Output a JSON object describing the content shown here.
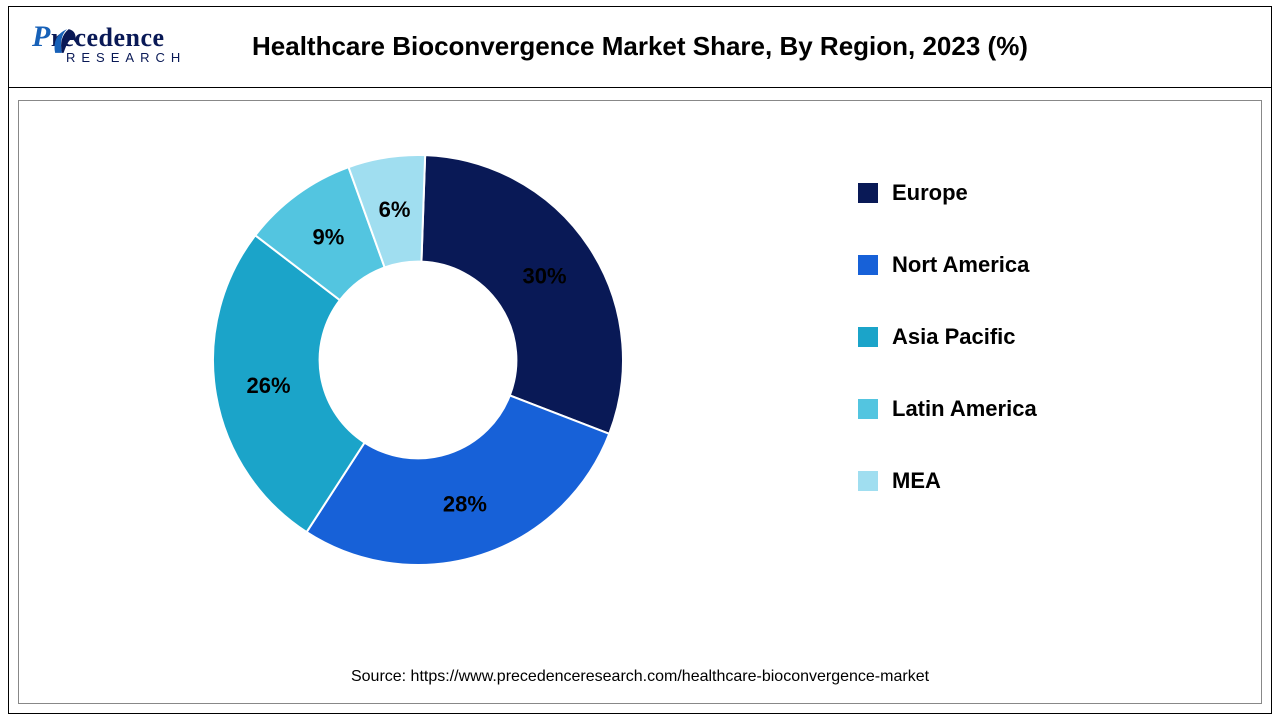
{
  "logo": {
    "brand_first": "P",
    "brand_rest": "recedence",
    "brand_sub": "RESEARCH",
    "brand_color_main": "#091956",
    "brand_color_accent": "#1761b8"
  },
  "chart": {
    "type": "donut",
    "title": "Healthcare Bioconvergence Market Share, By Region, 2023 (%)",
    "title_fontsize": 26,
    "title_color": "#000000",
    "background_color": "#ffffff",
    "inner_radius_pct": 48,
    "outer_radius_pct": 100,
    "start_angle_deg": 2,
    "slices": [
      {
        "label": "Europe",
        "value": 30,
        "display": "30%",
        "color": "#091956"
      },
      {
        "label": "Nort America",
        "value": 28,
        "display": "28%",
        "color": "#1761d8"
      },
      {
        "label": "Asia Pacific",
        "value": 26,
        "display": "26%",
        "color": "#1ba4c9"
      },
      {
        "label": "Latin America",
        "value": 9,
        "display": "9%",
        "color": "#53c5e0"
      },
      {
        "label": "MEA",
        "value": 6,
        "display": "6%",
        "color": "#a0def0"
      }
    ],
    "label_fontsize": 22,
    "label_fontweight": "700",
    "label_color": "#000000",
    "legend": {
      "position": "right",
      "swatch_size": 20,
      "fontsize": 22,
      "fontweight": "700",
      "item_gap": 46
    },
    "source": "Source: https://www.precedenceresearch.com/healthcare-bioconvergence-market",
    "source_fontsize": 16
  }
}
